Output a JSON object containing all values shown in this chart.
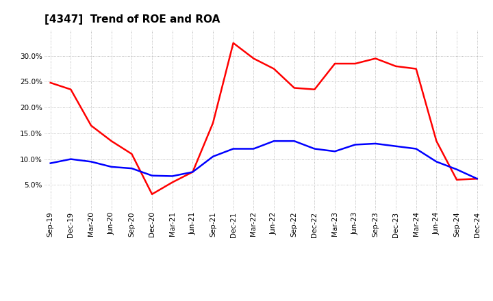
{
  "title": "[4347]  Trend of ROE and ROA",
  "labels": [
    "Sep-19",
    "Dec-19",
    "Mar-20",
    "Jun-20",
    "Sep-20",
    "Dec-20",
    "Mar-21",
    "Jun-21",
    "Sep-21",
    "Dec-21",
    "Mar-22",
    "Jun-22",
    "Sep-22",
    "Dec-22",
    "Mar-23",
    "Jun-23",
    "Sep-23",
    "Dec-23",
    "Mar-24",
    "Jun-24",
    "Sep-24",
    "Dec-24"
  ],
  "ROE": [
    24.8,
    23.5,
    16.5,
    13.5,
    11.0,
    3.2,
    5.5,
    7.5,
    17.0,
    32.5,
    29.5,
    27.5,
    23.8,
    23.5,
    28.5,
    28.5,
    29.5,
    28.0,
    27.5,
    13.5,
    6.0,
    6.2
  ],
  "ROA": [
    9.2,
    10.0,
    9.5,
    8.5,
    8.2,
    6.8,
    6.7,
    7.5,
    10.5,
    12.0,
    12.0,
    13.5,
    13.5,
    12.0,
    11.5,
    12.8,
    13.0,
    12.5,
    12.0,
    9.5,
    8.0,
    6.2
  ],
  "roe_color": "#FF0000",
  "roa_color": "#0000FF",
  "background_color": "#FFFFFF",
  "grid_color": "#AAAAAA",
  "ylim": [
    0,
    35
  ],
  "yticks": [
    5.0,
    10.0,
    15.0,
    20.0,
    25.0,
    30.0
  ],
  "title_fontsize": 11,
  "tick_fontsize": 7.5,
  "legend_fontsize": 9,
  "line_width": 1.8
}
